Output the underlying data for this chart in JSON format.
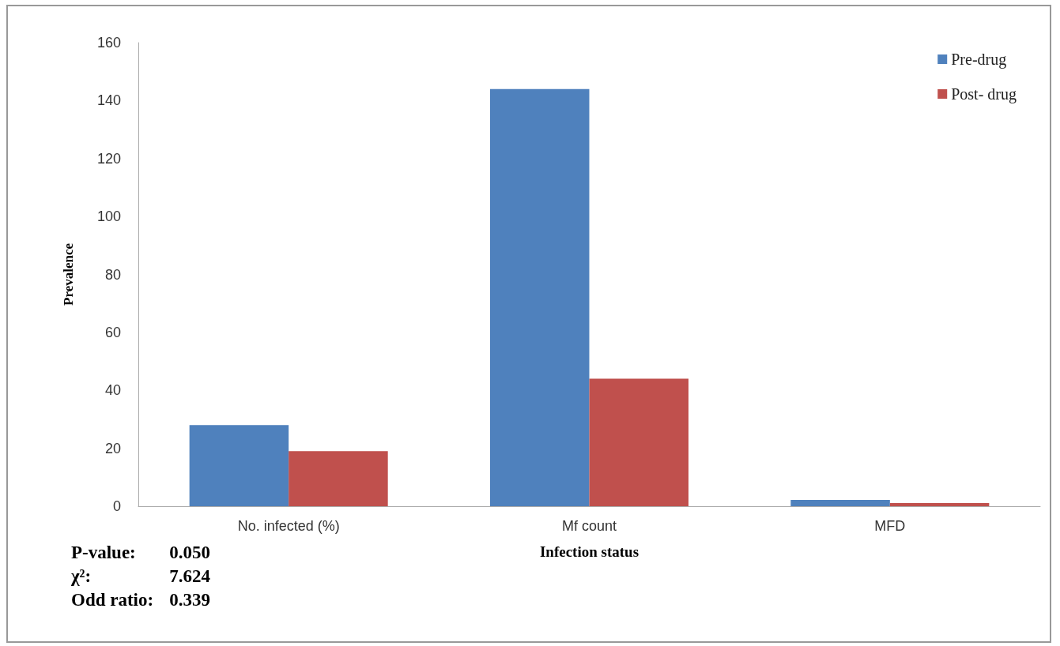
{
  "chart_data": {
    "type": "bar",
    "xlabel": "Infection status",
    "ylabel": "Prevalence",
    "categories": [
      "No. infected (%)",
      "Mf count",
      "MFD"
    ],
    "series": [
      {
        "name": "Pre-drug",
        "color": "#4f81bd",
        "values": [
          28,
          144,
          2.2
        ]
      },
      {
        "name": "Post- drug",
        "color": "#c0504d",
        "values": [
          19,
          44,
          1.1
        ]
      }
    ],
    "ylim": [
      0,
      160
    ],
    "yticks": [
      0,
      20,
      40,
      60,
      80,
      100,
      120,
      140,
      160
    ],
    "grid": false,
    "legend": "top right",
    "annotations": [
      "P-value: 0.050",
      "χ²: 7.624",
      "Odd ratio: 0.339"
    ]
  }
}
